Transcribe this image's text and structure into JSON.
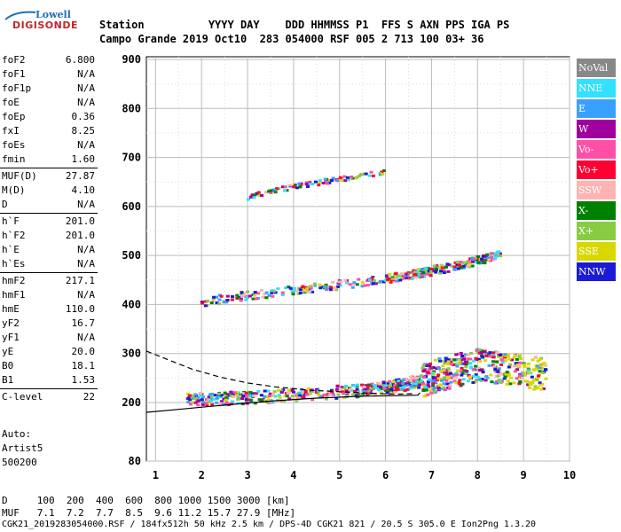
{
  "logo": {
    "line1": "Lowell",
    "line2": "DIGISONDE"
  },
  "header": {
    "row1": "Station          YYYY DAY    DDD HHMMSS P1  FFS S AXN PPS IGA PS",
    "row2": "Campo Grande 2019 Oct10  283 054000 RSF 005 2 713 100 03+ 36"
  },
  "params": [
    {
      "name": "foF2",
      "value": "6.800"
    },
    {
      "name": "foF1",
      "value": "N/A"
    },
    {
      "name": "foF1p",
      "value": "N/A"
    },
    {
      "name": "foE",
      "value": "N/A"
    },
    {
      "name": "foEp",
      "value": "0.36"
    },
    {
      "name": "fxI",
      "value": "8.25"
    },
    {
      "name": "foEs",
      "value": "N/A"
    },
    {
      "name": "fmin",
      "value": "1.60"
    },
    {
      "name": "MUF(D)",
      "value": "27.87"
    },
    {
      "name": "M(D)",
      "value": "4.10"
    },
    {
      "name": "D",
      "value": "N/A"
    },
    {
      "name": "h`F",
      "value": "201.0"
    },
    {
      "name": "h`F2",
      "value": "201.0"
    },
    {
      "name": "h`E",
      "value": "N/A"
    },
    {
      "name": "h`Es",
      "value": "N/A"
    },
    {
      "name": "hmF2",
      "value": "217.1"
    },
    {
      "name": "hmF1",
      "value": "N/A"
    },
    {
      "name": "hmE",
      "value": "110.0"
    },
    {
      "name": "yF2",
      "value": "16.7"
    },
    {
      "name": "yF1",
      "value": "N/A"
    },
    {
      "name": "yE",
      "value": "20.0"
    },
    {
      "name": "B0",
      "value": "18.1"
    },
    {
      "name": "B1",
      "value": "1.53"
    },
    {
      "name": "C-level",
      "value": "22"
    }
  ],
  "autoscale": {
    "line1": "Auto:",
    "line2": "Artist5",
    "line3": "500200"
  },
  "legend": [
    {
      "label": "NoVal",
      "color": "#888888"
    },
    {
      "label": "NNE",
      "color": "#33e0ff"
    },
    {
      "label": "E",
      "color": "#3aa0ff"
    },
    {
      "label": "W",
      "color": "#a0009e"
    },
    {
      "label": "Vo-",
      "color": "#ff4fa6"
    },
    {
      "label": "Vo+",
      "color": "#ff0033"
    },
    {
      "label": "SSW",
      "color": "#ffb3b3"
    },
    {
      "label": "X-",
      "color": "#008000"
    },
    {
      "label": "X+",
      "color": "#88cc44"
    },
    {
      "label": "SSE",
      "color": "#d8d800"
    },
    {
      "label": "NNW",
      "color": "#1a1ad8"
    }
  ],
  "bottom": {
    "row1": "D     100  200  400  600  800 1000 1500 3000 [km]",
    "row2": "MUF   7.1  7.2  7.7  8.5  9.6 11.2 15.7 27.9 [MHz]",
    "row3": "CGK21_2019283054000.RSF / 184fx512h 50 kHz 2.5 km / DPS-4D CGK21 821 / 20.5 S 305.0 E Ion2Png 1.3.20"
  },
  "chart_data": {
    "type": "scatter",
    "title": "",
    "xlabel": "",
    "ylabel": "",
    "xlim": [
      0.8,
      10.0
    ],
    "ylim": [
      80,
      900
    ],
    "x_ticks": [
      1,
      2,
      3,
      4,
      5,
      6,
      7,
      8,
      9,
      10
    ],
    "y_ticks": [
      80,
      200,
      300,
      400,
      500,
      600,
      700,
      800,
      900
    ],
    "grid": true,
    "legend_position": "right",
    "series": [
      {
        "kind": "trace",
        "color": "#ffffff",
        "x": [
          1.7,
          2.5,
          3.5,
          4.5,
          5.5,
          6.0,
          6.4,
          6.8,
          7.1,
          7.5,
          8.0,
          8.5,
          9.0,
          9.5
        ],
        "y": [
          205,
          208,
          212,
          218,
          225,
          230,
          236,
          245,
          255,
          265,
          275,
          270,
          262,
          258
        ]
      },
      {
        "kind": "trace",
        "color": "#ffffff",
        "x": [
          2.0,
          3.0,
          4.0,
          5.0,
          6.0,
          6.5,
          7.0,
          7.5,
          8.0,
          8.5
        ],
        "y": [
          405,
          418,
          428,
          440,
          452,
          460,
          468,
          478,
          490,
          500
        ]
      },
      {
        "kind": "trace",
        "color": "#ffffff",
        "x": [
          3.0,
          3.5,
          4.0,
          4.5,
          5.0,
          5.5,
          6.0
        ],
        "y": [
          618,
          630,
          640,
          648,
          655,
          662,
          670
        ]
      },
      {
        "kind": "profile",
        "color": "#000000",
        "dashed": true,
        "x": [
          0.8,
          1.2,
          1.8,
          2.4,
          3.0,
          3.6,
          4.4,
          5.4,
          6.2,
          6.6
        ],
        "y": [
          305,
          290,
          268,
          252,
          240,
          232,
          225,
          220,
          217,
          218
        ]
      },
      {
        "kind": "profile",
        "color": "#000000",
        "dashed": false,
        "x": [
          0.8,
          1.5,
          2.5,
          3.5,
          4.5,
          5.5,
          6.2,
          6.7,
          6.75
        ],
        "y": [
          180,
          186,
          195,
          203,
          209,
          213,
          214,
          215,
          220
        ]
      }
    ]
  }
}
